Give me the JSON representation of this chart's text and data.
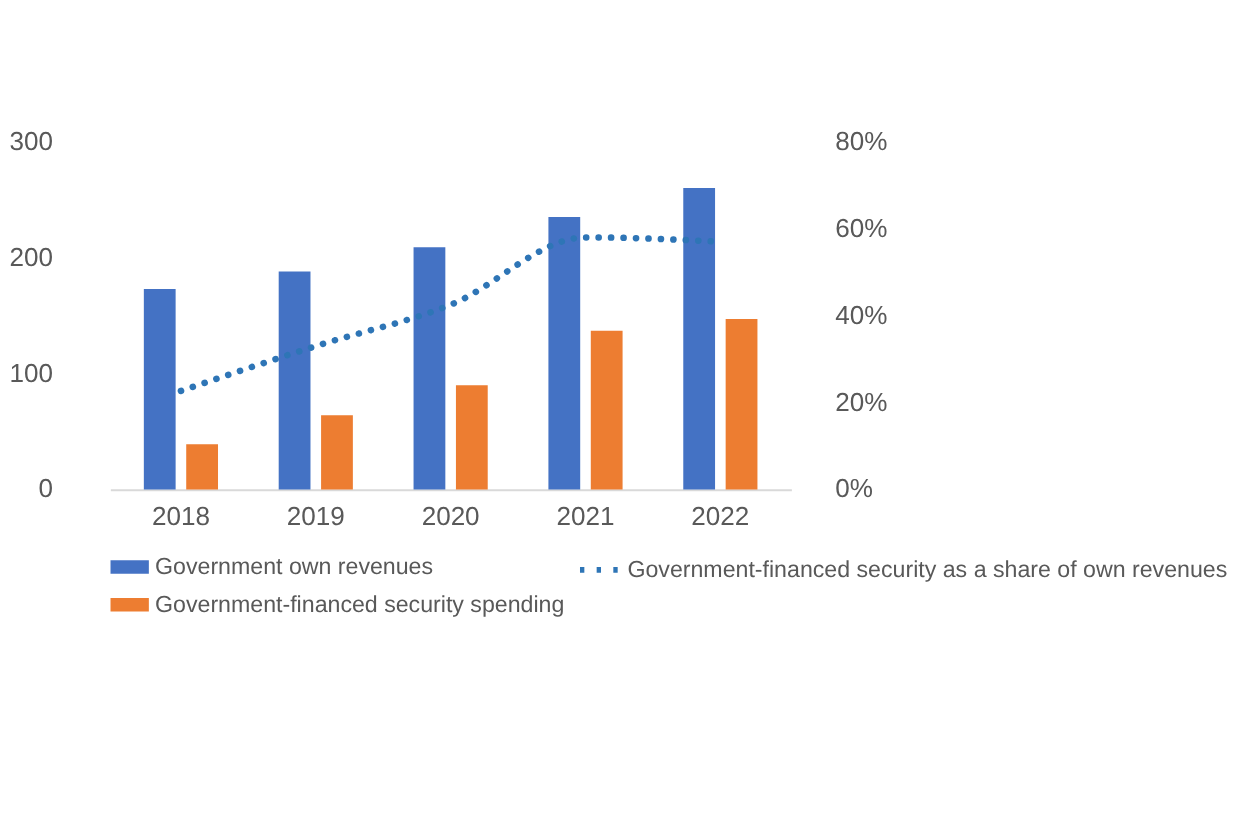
{
  "chart_data": {
    "type": "bar",
    "categories": [
      "2018",
      "2019",
      "2020",
      "2021",
      "2022"
    ],
    "series": [
      {
        "name": "Government own revenues",
        "color": "#4472c4",
        "values": [
          173,
          188,
          209,
          235,
          260
        ]
      },
      {
        "name": "Government-financed security spending",
        "color": "#ed7d31",
        "values": [
          39,
          64,
          90,
          137,
          147
        ]
      },
      {
        "name": "Government-financed security as a share of own revenues",
        "type": "line",
        "axis": "y2",
        "color": "#2e75b6",
        "line_style": "dotted",
        "values": [
          22.7,
          33,
          42.5,
          58,
          57
        ]
      }
    ],
    "ylim": [
      0,
      300
    ],
    "yticks": [
      0,
      100,
      200,
      300
    ],
    "y2lim": [
      0,
      80
    ],
    "y2ticks": [
      {
        "value": 0,
        "label": "0%"
      },
      {
        "value": 20,
        "label": "20%"
      },
      {
        "value": 40,
        "label": "40%"
      },
      {
        "value": 60,
        "label": "60%"
      },
      {
        "value": 80,
        "label": "80%"
      }
    ],
    "grid": false,
    "legend": "bottom"
  }
}
